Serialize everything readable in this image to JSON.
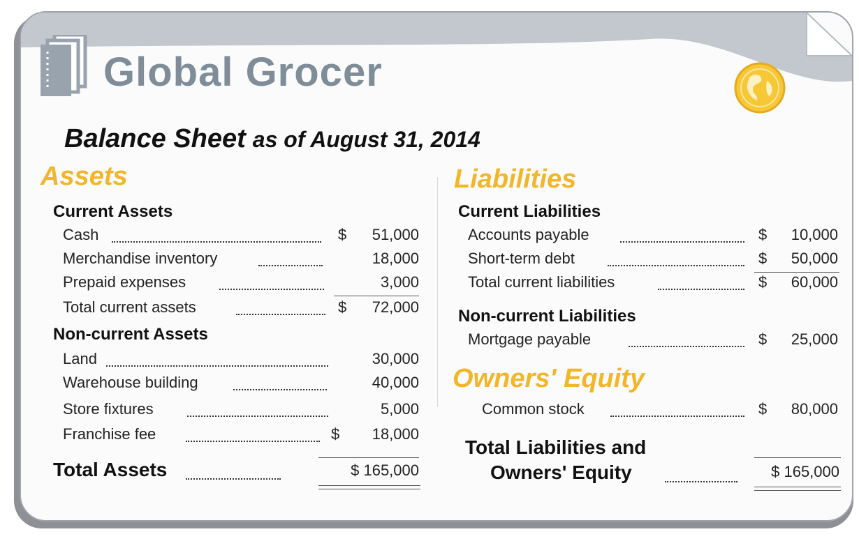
{
  "brand": {
    "name": "Global Grocer"
  },
  "title": {
    "main": "Balance Sheet",
    "sub": "as of August 31, 2014"
  },
  "colors": {
    "accent": "#f1b62a",
    "banner": "#c3c8ce",
    "logo_text": "#7f8d99"
  },
  "assets": {
    "heading": "Assets",
    "current_heading": "Current Assets",
    "current": [
      {
        "label": "Cash",
        "currency": "$",
        "amount": "51,000"
      },
      {
        "label": "Merchandise inventory",
        "currency": "",
        "amount": "18,000"
      },
      {
        "label": "Prepaid expenses",
        "currency": "",
        "amount": "3,000"
      },
      {
        "label": "Total current assets",
        "currency": "$",
        "amount": "72,000"
      }
    ],
    "noncurrent_heading": "Non-current Assets",
    "noncurrent": [
      {
        "label": "Land",
        "currency": "",
        "amount": "30,000"
      },
      {
        "label": "Warehouse building",
        "currency": "",
        "amount": "40,000"
      },
      {
        "label": "Store fixtures",
        "currency": "",
        "amount": "5,000"
      },
      {
        "label": "Franchise fee",
        "currency": "$",
        "amount": "18,000"
      }
    ],
    "total_label": "Total Assets",
    "total_amount": "$ 165,000"
  },
  "liabilities": {
    "heading": "Liabilities",
    "current_heading": "Current Liabilities",
    "current": [
      {
        "label": "Accounts payable",
        "currency": "$",
        "amount": "10,000"
      },
      {
        "label": "Short-term debt",
        "currency": "$",
        "amount": "50,000"
      },
      {
        "label": "Total current liabilities",
        "currency": "$",
        "amount": "60,000"
      }
    ],
    "noncurrent_heading": "Non-current Liabilities",
    "noncurrent": [
      {
        "label": "Mortgage payable",
        "currency": "$",
        "amount": "25,000"
      }
    ]
  },
  "equity": {
    "heading": "Owners' Equity",
    "items": [
      {
        "label": "Common stock",
        "currency": "$",
        "amount": "80,000"
      }
    ],
    "total_label_line1": "Total Liabilities and",
    "total_label_line2": "Owners' Equity",
    "total_amount": "$ 165,000"
  }
}
